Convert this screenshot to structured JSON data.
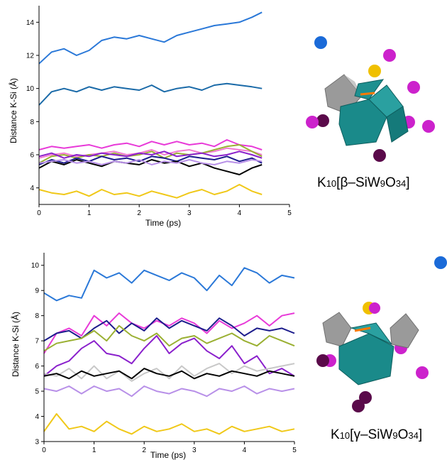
{
  "colors": {
    "blue_light": "#2a78d8",
    "blue_dark": "#1a6aa8",
    "magenta": "#e83ad8",
    "pink_light": "#f27ad0",
    "olive": "#9ab032",
    "navy": "#1c1c8c",
    "purple": "#8a20cc",
    "black": "#000000",
    "lavender": "#b890e8",
    "grey": "#c8c8c8",
    "yellow": "#f0c818",
    "teal_polyhedron": "#1a8a8a",
    "grey_polyhedron": "#9a9a9a",
    "potassium_magenta": "#cc22cc",
    "potassium_dark": "#5a0a4a",
    "sphere_blue": "#1a6ad8",
    "sphere_yellow": "#f0c000"
  },
  "panels": [
    {
      "formula": {
        "prefix": "K",
        "prefix_sub": "10",
        "open": "[",
        "isomer": "β",
        "dash": "–",
        "body1": "SiW",
        "sub1": "9",
        "body2": "O",
        "sub2": "34",
        "close": "]"
      },
      "chart_data": {
        "type": "line",
        "title": "",
        "xlabel": "Time (ps)",
        "ylabel": "Distance K-Si (Å)",
        "xlim": [
          0,
          5
        ],
        "ylim": [
          3,
          15
        ],
        "xticks": [
          "0",
          "1",
          "2",
          "3",
          "4",
          "5"
        ],
        "yticks": [
          "4",
          "6",
          "8",
          "10",
          "12",
          "14"
        ],
        "x": [
          0,
          0.25,
          0.5,
          0.75,
          1.0,
          1.25,
          1.5,
          1.75,
          2.0,
          2.25,
          2.5,
          2.75,
          3.0,
          3.25,
          3.5,
          3.75,
          4.0,
          4.25,
          4.45
        ],
        "series": [
          {
            "color": "blue_light",
            "values": [
              11.5,
              12.2,
              12.4,
              12.0,
              12.3,
              12.9,
              13.1,
              13.0,
              13.2,
              13.0,
              12.8,
              13.2,
              13.4,
              13.6,
              13.8,
              13.9,
              14.0,
              14.3,
              14.6
            ]
          },
          {
            "color": "blue_dark",
            "values": [
              9.0,
              9.8,
              10.0,
              9.8,
              10.1,
              9.9,
              10.1,
              10.0,
              9.9,
              10.2,
              9.8,
              10.0,
              10.1,
              9.9,
              10.2,
              10.3,
              10.2,
              10.1,
              10.0
            ]
          },
          {
            "color": "magenta",
            "values": [
              6.3,
              6.5,
              6.4,
              6.5,
              6.6,
              6.4,
              6.6,
              6.7,
              6.5,
              6.8,
              6.6,
              6.8,
              6.6,
              6.7,
              6.5,
              6.9,
              6.6,
              6.5,
              6.3
            ]
          },
          {
            "color": "pink_light",
            "values": [
              5.8,
              6.0,
              6.1,
              5.9,
              6.0,
              6.1,
              6.2,
              6.0,
              6.1,
              6.3,
              6.0,
              6.2,
              6.3,
              6.1,
              6.2,
              6.4,
              6.3,
              6.2,
              6.0
            ]
          },
          {
            "color": "olive",
            "values": [
              5.5,
              5.9,
              6.0,
              5.8,
              6.0,
              5.9,
              6.1,
              5.9,
              6.0,
              6.2,
              5.8,
              6.1,
              6.0,
              6.1,
              6.3,
              6.5,
              6.6,
              6.2,
              5.9
            ]
          },
          {
            "color": "navy",
            "values": [
              5.4,
              5.7,
              5.5,
              5.8,
              5.6,
              5.9,
              5.7,
              5.8,
              5.6,
              5.9,
              5.8,
              5.6,
              5.9,
              5.8,
              5.7,
              5.9,
              5.6,
              5.8,
              5.5
            ]
          },
          {
            "color": "purple",
            "values": [
              5.9,
              6.1,
              5.8,
              6.0,
              5.9,
              6.1,
              6.0,
              5.9,
              6.1,
              6.0,
              6.2,
              5.9,
              6.0,
              6.1,
              5.9,
              6.0,
              6.2,
              6.0,
              5.8
            ]
          },
          {
            "color": "black",
            "values": [
              5.2,
              5.6,
              5.4,
              5.7,
              5.5,
              5.3,
              5.6,
              5.5,
              5.4,
              5.7,
              5.5,
              5.6,
              5.3,
              5.5,
              5.2,
              5.0,
              4.8,
              5.2,
              5.4
            ]
          },
          {
            "color": "lavender",
            "values": [
              5.5,
              5.6,
              5.7,
              5.5,
              5.6,
              5.4,
              5.6,
              5.5,
              5.7,
              5.4,
              5.6,
              5.5,
              5.7,
              5.5,
              5.4,
              5.6,
              5.5,
              5.7,
              5.6
            ]
          },
          {
            "color": "yellow",
            "values": [
              3.9,
              3.7,
              3.6,
              3.8,
              3.5,
              3.9,
              3.6,
              3.7,
              3.5,
              3.8,
              3.6,
              3.4,
              3.7,
              3.9,
              3.6,
              3.8,
              4.2,
              3.8,
              3.6
            ]
          }
        ]
      }
    },
    {
      "formula": {
        "prefix": "K",
        "prefix_sub": "10",
        "open": "[",
        "isomer": "γ",
        "dash": "–",
        "body1": "SiW",
        "sub1": "9",
        "body2": "O",
        "sub2": "34",
        "close": "]"
      },
      "chart_data": {
        "type": "line",
        "title": "",
        "xlabel": "Time (ps)",
        "ylabel": "Distance K-Si (Å)",
        "xlim": [
          0,
          5
        ],
        "ylim": [
          3,
          10.5
        ],
        "xticks": [
          "0",
          "1",
          "2",
          "3",
          "4",
          "5"
        ],
        "yticks": [
          "3",
          "4",
          "5",
          "6",
          "7",
          "8",
          "9",
          "10"
        ],
        "x": [
          0,
          0.25,
          0.5,
          0.75,
          1.0,
          1.25,
          1.5,
          1.75,
          2.0,
          2.25,
          2.5,
          2.75,
          3.0,
          3.25,
          3.5,
          3.75,
          4.0,
          4.25,
          4.5,
          4.75,
          5.0
        ],
        "series": [
          {
            "color": "blue_light",
            "values": [
              8.9,
              8.6,
              8.8,
              8.7,
              9.8,
              9.5,
              9.7,
              9.3,
              9.8,
              9.6,
              9.4,
              9.7,
              9.5,
              9.0,
              9.6,
              9.2,
              9.9,
              9.7,
              9.3,
              9.6,
              9.5
            ]
          },
          {
            "color": "magenta",
            "values": [
              6.5,
              7.3,
              7.5,
              7.2,
              8.0,
              7.6,
              8.1,
              7.7,
              7.5,
              7.8,
              7.6,
              7.9,
              7.7,
              7.3,
              7.8,
              7.5,
              7.7,
              8.0,
              7.6,
              8.0,
              8.1
            ]
          },
          {
            "color": "navy",
            "values": [
              7.0,
              7.3,
              7.4,
              7.1,
              7.5,
              7.8,
              7.3,
              7.7,
              7.4,
              7.9,
              7.5,
              7.8,
              7.6,
              7.4,
              7.9,
              7.6,
              7.2,
              7.5,
              7.4,
              7.5,
              7.3
            ]
          },
          {
            "color": "olive",
            "values": [
              6.6,
              6.9,
              7.0,
              7.1,
              7.4,
              7.0,
              7.6,
              7.2,
              7.0,
              7.3,
              6.8,
              7.1,
              7.2,
              6.9,
              7.1,
              7.3,
              7.0,
              6.8,
              7.2,
              7.0,
              6.8
            ]
          },
          {
            "color": "purple",
            "values": [
              5.6,
              6.0,
              6.2,
              6.7,
              7.0,
              6.5,
              6.4,
              6.1,
              6.7,
              7.2,
              6.5,
              6.9,
              7.1,
              6.6,
              6.3,
              6.8,
              6.1,
              6.4,
              5.7,
              5.9,
              5.6
            ]
          },
          {
            "color": "grey",
            "values": [
              5.7,
              5.6,
              5.9,
              5.5,
              6.0,
              5.5,
              5.8,
              5.4,
              5.7,
              5.9,
              5.5,
              6.0,
              5.6,
              5.9,
              6.1,
              5.7,
              6.0,
              5.8,
              5.9,
              6.0,
              6.1
            ]
          },
          {
            "color": "black",
            "values": [
              5.6,
              5.7,
              5.5,
              5.8,
              5.6,
              5.7,
              5.8,
              5.5,
              5.9,
              5.7,
              5.6,
              5.8,
              5.5,
              5.7,
              5.6,
              5.8,
              5.7,
              5.6,
              5.8,
              5.7,
              5.6
            ]
          },
          {
            "color": "lavender",
            "values": [
              5.1,
              5.0,
              5.2,
              4.9,
              5.2,
              5.0,
              5.1,
              4.8,
              5.2,
              5.0,
              4.9,
              5.1,
              5.0,
              4.8,
              5.1,
              5.0,
              5.2,
              4.9,
              5.1,
              5.0,
              5.1
            ]
          },
          {
            "color": "yellow",
            "values": [
              3.4,
              4.1,
              3.5,
              3.6,
              3.4,
              3.8,
              3.5,
              3.3,
              3.6,
              3.4,
              3.5,
              3.7,
              3.4,
              3.5,
              3.3,
              3.6,
              3.4,
              3.5,
              3.6,
              3.4,
              3.5
            ]
          }
        ]
      }
    }
  ]
}
